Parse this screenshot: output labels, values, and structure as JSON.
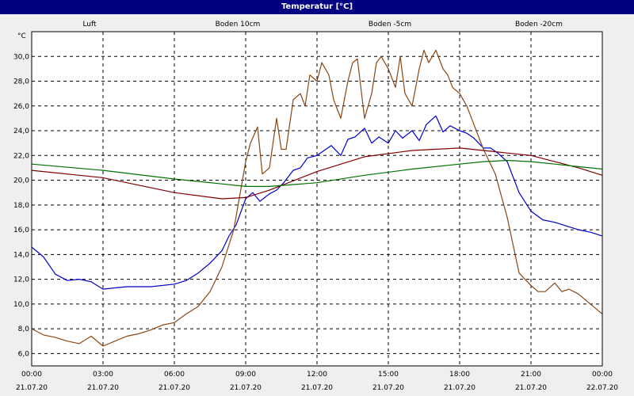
{
  "window": {
    "title": "Temperatur [°C]"
  },
  "colors": {
    "Luft": "#0000cc",
    "Boden 10cm": "#8b4513",
    "Boden -5cm": "#800000",
    "Boden -20cm": "#007000"
  },
  "chart_data": {
    "type": "line",
    "title": "Temperatur [°C]",
    "ylabel": "°C",
    "ylim": [
      5,
      32
    ],
    "xlim": [
      0,
      24
    ],
    "yticks": [
      "6,0",
      "8,0",
      "10,0",
      "12,0",
      "14,0",
      "16,0",
      "18,0",
      "20,0",
      "22,0",
      "24,0",
      "26,0",
      "28,0",
      "30,0"
    ],
    "xticks": [
      {
        "time": "00:00",
        "date": "21.07.20"
      },
      {
        "time": "03:00",
        "date": "21.07.20"
      },
      {
        "time": "06:00",
        "date": "21.07.20"
      },
      {
        "time": "09:00",
        "date": "21.07.20"
      },
      {
        "time": "12:00",
        "date": "21.07.20"
      },
      {
        "time": "15:00",
        "date": "21.07.20"
      },
      {
        "time": "18:00",
        "date": "21.07.20"
      },
      {
        "time": "21:00",
        "date": "21.07.20"
      },
      {
        "time": "00:00",
        "date": "22.07.20"
      }
    ],
    "grid": true,
    "legend_placement": "top",
    "series": [
      {
        "name": "Luft",
        "x": [
          0,
          0.5,
          1,
          1.5,
          2,
          2.5,
          3,
          3.5,
          4,
          5,
          6,
          6.5,
          7,
          7.5,
          8,
          8.3,
          8.6,
          9,
          9.3,
          9.6,
          10,
          10.3,
          10.6,
          11,
          11.3,
          11.6,
          12,
          12.3,
          12.6,
          13,
          13.3,
          13.6,
          14,
          14.3,
          14.6,
          15,
          15.3,
          15.6,
          16,
          16.3,
          16.6,
          17,
          17.3,
          17.6,
          18,
          18.3,
          18.6,
          19,
          19.3,
          19.6,
          20,
          20.5,
          21,
          21.5,
          22,
          22.5,
          23,
          23.5,
          24
        ],
        "values": [
          14.6,
          13.8,
          12.4,
          11.9,
          12.0,
          11.8,
          11.2,
          11.3,
          11.4,
          11.4,
          11.6,
          11.9,
          12.5,
          13.3,
          14.3,
          15.5,
          16.4,
          18.5,
          19.0,
          18.3,
          18.9,
          19.2,
          19.8,
          20.8,
          21.0,
          21.8,
          22.0,
          22.4,
          22.8,
          22.0,
          23.3,
          23.5,
          24.2,
          23.0,
          23.5,
          23.0,
          24.0,
          23.4,
          24.0,
          23.2,
          24.5,
          25.2,
          23.9,
          24.4,
          24.0,
          23.8,
          23.4,
          22.6,
          22.6,
          22.2,
          21.5,
          19.0,
          17.5,
          16.8,
          16.6,
          16.3,
          16.0,
          15.8,
          15.5
        ]
      },
      {
        "name": "Boden 10cm",
        "x": [
          0,
          0.5,
          1,
          1.5,
          2,
          2.5,
          3,
          3.5,
          4,
          4.5,
          5,
          5.5,
          6,
          6.5,
          7,
          7.5,
          8,
          8.5,
          9,
          9.2,
          9.5,
          9.7,
          10,
          10.3,
          10.5,
          10.7,
          11,
          11.3,
          11.5,
          11.7,
          12,
          12.2,
          12.5,
          12.7,
          13,
          13.3,
          13.5,
          13.7,
          14,
          14.3,
          14.5,
          14.7,
          15,
          15.3,
          15.5,
          15.7,
          16,
          16.3,
          16.5,
          16.7,
          17,
          17.3,
          17.5,
          17.7,
          18,
          18.3,
          18.6,
          19,
          19.5,
          20,
          20.5,
          21,
          21.3,
          21.6,
          22,
          22.3,
          22.6,
          23,
          23.5,
          24
        ],
        "values": [
          8.0,
          7.5,
          7.3,
          7.0,
          6.8,
          7.4,
          6.6,
          7.0,
          7.4,
          7.6,
          7.9,
          8.3,
          8.5,
          9.2,
          9.8,
          11.0,
          13.0,
          16.0,
          21.5,
          23.0,
          24.3,
          20.5,
          21.0,
          25.0,
          22.5,
          22.5,
          26.5,
          27.0,
          26.0,
          28.5,
          28.0,
          29.5,
          28.5,
          26.5,
          25.0,
          28.0,
          29.5,
          29.8,
          25.0,
          27.0,
          29.5,
          30.0,
          29.0,
          27.5,
          30.0,
          27.0,
          26.0,
          29.0,
          30.5,
          29.5,
          30.5,
          29.0,
          28.5,
          27.5,
          27.0,
          26.0,
          24.5,
          22.5,
          20.5,
          17.0,
          12.5,
          11.5,
          11.0,
          11.0,
          11.7,
          11.0,
          11.2,
          10.8,
          10.0,
          9.2
        ]
      },
      {
        "name": "Boden -5cm",
        "x": [
          0,
          3,
          6,
          8,
          9,
          10,
          12,
          14,
          16,
          18,
          19,
          20,
          21,
          22,
          23,
          24
        ],
        "values": [
          20.8,
          20.2,
          19.0,
          18.5,
          18.6,
          19.2,
          20.7,
          21.9,
          22.4,
          22.6,
          22.4,
          22.2,
          22.0,
          21.5,
          21.0,
          20.4
        ]
      },
      {
        "name": "Boden -20cm",
        "x": [
          0,
          3,
          6,
          8,
          9,
          10,
          12,
          14,
          16,
          18,
          19,
          20,
          21,
          22,
          23,
          24
        ],
        "values": [
          21.3,
          20.8,
          20.1,
          19.7,
          19.5,
          19.5,
          19.8,
          20.4,
          20.9,
          21.3,
          21.5,
          21.6,
          21.5,
          21.3,
          21.1,
          20.9
        ]
      }
    ]
  }
}
